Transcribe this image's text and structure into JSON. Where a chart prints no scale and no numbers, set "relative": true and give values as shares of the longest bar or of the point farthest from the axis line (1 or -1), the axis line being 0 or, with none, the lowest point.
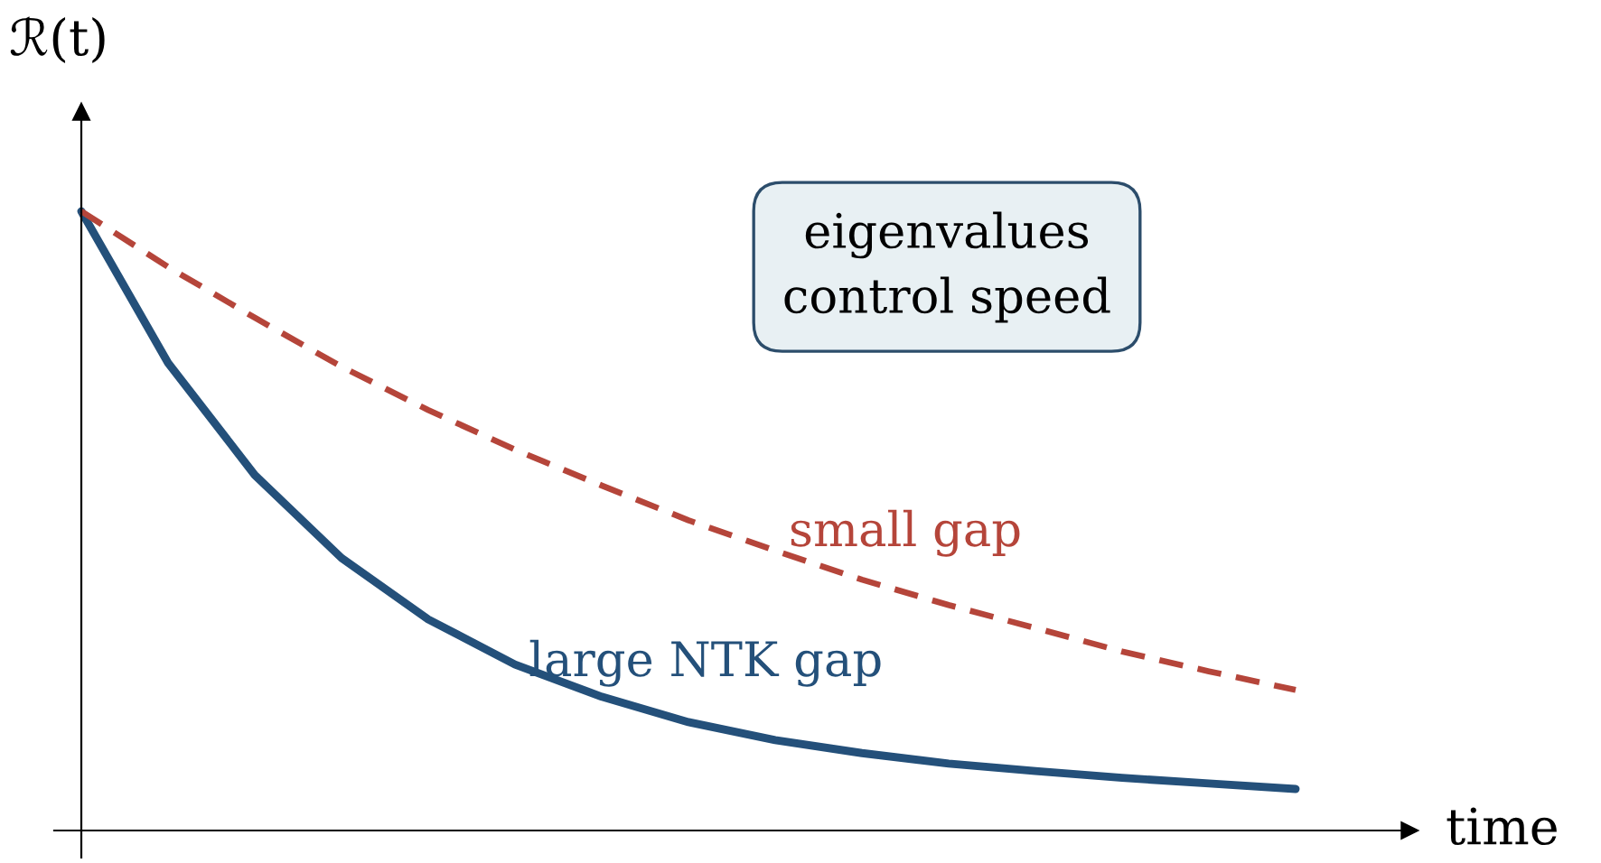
{
  "chart_data": {
    "type": "line",
    "relative": true,
    "xlabel": "time",
    "ylabel": "ℛ(t)",
    "categories": [
      null,
      null,
      null,
      null,
      null,
      null,
      null,
      null,
      null,
      null,
      null,
      null,
      null,
      null,
      null
    ],
    "series": [
      {
        "name": "large NTK gap",
        "color": "#24507a",
        "line_style": "solid",
        "values": [
          1.0,
          0.755,
          0.574,
          0.44,
          0.341,
          0.268,
          0.216,
          0.175,
          0.146,
          0.125,
          0.108,
          0.096,
          0.085,
          0.076,
          0.067
        ]
      },
      {
        "name": "small gap",
        "color": "#b5453a",
        "line_style": "dashed",
        "values": [
          1.0,
          0.91,
          0.828,
          0.749,
          0.679,
          0.615,
          0.557,
          0.501,
          0.452,
          0.405,
          0.364,
          0.327,
          0.289,
          0.257,
          0.227
        ]
      }
    ],
    "annotations": [
      "eigenvalues\ncontrol speed"
    ]
  }
}
